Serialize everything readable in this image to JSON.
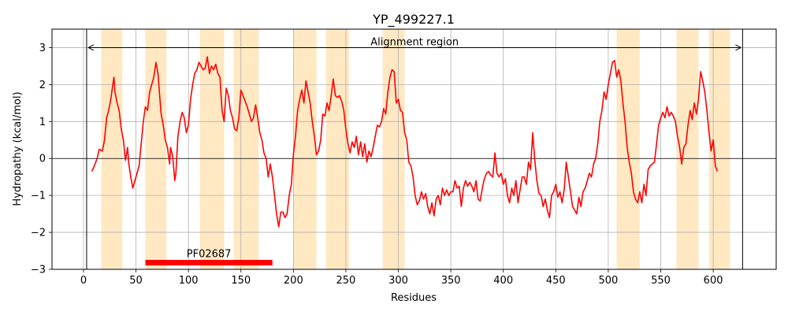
{
  "chart_data": {
    "type": "line",
    "title": "YP_499227.1",
    "xlabel": "Residues",
    "ylabel": "Hydropathy (kcal/mol)",
    "xlim": [
      -30,
      660
    ],
    "ylim": [
      -3,
      3.5
    ],
    "xticks": [
      0,
      50,
      100,
      150,
      200,
      250,
      300,
      350,
      400,
      450,
      500,
      550,
      600
    ],
    "yticks": [
      -3,
      -2,
      -1,
      0,
      1,
      2,
      3
    ],
    "grid": true,
    "colors": {
      "line": "#ff0000",
      "band": "#ffe8c2",
      "domain": "#ff0000",
      "grid": "#b0b0b0"
    },
    "alignment_region": {
      "label": "Alignment region",
      "start": 3,
      "end": 628,
      "y": 3.0
    },
    "domain": {
      "label": "PF02687",
      "start": 59,
      "end": 180,
      "y": -2.82
    },
    "hydrophobic_segments": [
      [
        17,
        37
      ],
      [
        59,
        79
      ],
      [
        111,
        134
      ],
      [
        143,
        167
      ],
      [
        200,
        222
      ],
      [
        231,
        253
      ],
      [
        285,
        306
      ],
      [
        508,
        530
      ],
      [
        565,
        586
      ],
      [
        596,
        616
      ]
    ],
    "series": [
      {
        "values": [
          [
            8,
            -0.35
          ],
          [
            10,
            -0.22
          ],
          [
            13,
            0.0
          ],
          [
            15,
            0.25
          ],
          [
            18,
            0.2
          ],
          [
            20,
            0.5
          ],
          [
            22,
            1.1
          ],
          [
            24,
            1.3
          ],
          [
            26,
            1.6
          ],
          [
            28,
            2.0
          ],
          [
            29,
            2.2
          ],
          [
            30,
            1.8
          ],
          [
            32,
            1.5
          ],
          [
            34,
            1.3
          ],
          [
            36,
            0.8
          ],
          [
            38,
            0.5
          ],
          [
            40,
            -0.05
          ],
          [
            42,
            0.3
          ],
          [
            43,
            -0.1
          ],
          [
            45,
            -0.5
          ],
          [
            47,
            -0.8
          ],
          [
            49,
            -0.6
          ],
          [
            51,
            -0.4
          ],
          [
            53,
            -0.2
          ],
          [
            55,
            0.4
          ],
          [
            57,
            1.0
          ],
          [
            59,
            1.4
          ],
          [
            61,
            1.3
          ],
          [
            63,
            1.8
          ],
          [
            65,
            2.0
          ],
          [
            67,
            2.2
          ],
          [
            69,
            2.6
          ],
          [
            71,
            2.3
          ],
          [
            72,
            1.9
          ],
          [
            74,
            1.2
          ],
          [
            76,
            0.9
          ],
          [
            78,
            0.5
          ],
          [
            80,
            0.3
          ],
          [
            82,
            -0.15
          ],
          [
            83,
            0.3
          ],
          [
            85,
            0.05
          ],
          [
            87,
            -0.6
          ],
          [
            88,
            -0.4
          ],
          [
            90,
            0.6
          ],
          [
            92,
            1.0
          ],
          [
            94,
            1.25
          ],
          [
            96,
            1.1
          ],
          [
            98,
            0.7
          ],
          [
            100,
            0.9
          ],
          [
            102,
            1.6
          ],
          [
            104,
            2.0
          ],
          [
            106,
            2.3
          ],
          [
            108,
            2.4
          ],
          [
            110,
            2.6
          ],
          [
            112,
            2.5
          ],
          [
            114,
            2.4
          ],
          [
            116,
            2.45
          ],
          [
            118,
            2.75
          ],
          [
            120,
            2.3
          ],
          [
            122,
            2.5
          ],
          [
            124,
            2.4
          ],
          [
            126,
            2.55
          ],
          [
            128,
            2.3
          ],
          [
            130,
            2.2
          ],
          [
            132,
            1.3
          ],
          [
            134,
            1.0
          ],
          [
            136,
            1.9
          ],
          [
            138,
            1.7
          ],
          [
            140,
            1.3
          ],
          [
            142,
            1.1
          ],
          [
            144,
            0.8
          ],
          [
            146,
            0.75
          ],
          [
            148,
            1.1
          ],
          [
            150,
            1.85
          ],
          [
            152,
            1.7
          ],
          [
            154,
            1.55
          ],
          [
            156,
            1.4
          ],
          [
            158,
            1.2
          ],
          [
            160,
            1.0
          ],
          [
            162,
            1.1
          ],
          [
            164,
            1.45
          ],
          [
            166,
            1.1
          ],
          [
            168,
            0.7
          ],
          [
            170,
            0.5
          ],
          [
            172,
            0.15
          ],
          [
            174,
            0.0
          ],
          [
            176,
            -0.5
          ],
          [
            178,
            -0.15
          ],
          [
            180,
            -0.5
          ],
          [
            182,
            -1.0
          ],
          [
            184,
            -1.5
          ],
          [
            186,
            -1.85
          ],
          [
            188,
            -1.45
          ],
          [
            190,
            -1.45
          ],
          [
            192,
            -1.6
          ],
          [
            194,
            -1.5
          ],
          [
            196,
            -1.0
          ],
          [
            198,
            -0.7
          ],
          [
            200,
            0.1
          ],
          [
            202,
            0.6
          ],
          [
            204,
            1.3
          ],
          [
            206,
            1.6
          ],
          [
            208,
            1.85
          ],
          [
            210,
            1.5
          ],
          [
            212,
            2.1
          ],
          [
            214,
            1.8
          ],
          [
            216,
            1.5
          ],
          [
            218,
            1.0
          ],
          [
            220,
            0.6
          ],
          [
            222,
            0.1
          ],
          [
            224,
            0.2
          ],
          [
            226,
            0.5
          ],
          [
            228,
            1.2
          ],
          [
            230,
            1.15
          ],
          [
            232,
            1.5
          ],
          [
            234,
            1.3
          ],
          [
            236,
            1.7
          ],
          [
            238,
            2.15
          ],
          [
            240,
            1.7
          ],
          [
            242,
            1.65
          ],
          [
            244,
            1.7
          ],
          [
            246,
            1.55
          ],
          [
            248,
            1.3
          ],
          [
            250,
            0.8
          ],
          [
            252,
            0.4
          ],
          [
            254,
            0.15
          ],
          [
            256,
            0.45
          ],
          [
            258,
            0.3
          ],
          [
            260,
            0.6
          ],
          [
            262,
            0.1
          ],
          [
            264,
            0.45
          ],
          [
            266,
            0.05
          ],
          [
            268,
            0.4
          ],
          [
            270,
            -0.1
          ],
          [
            272,
            0.2
          ],
          [
            274,
            0.05
          ],
          [
            276,
            0.3
          ],
          [
            278,
            0.6
          ],
          [
            280,
            0.9
          ],
          [
            282,
            0.85
          ],
          [
            284,
            1.0
          ],
          [
            286,
            1.35
          ],
          [
            288,
            1.2
          ],
          [
            290,
            1.8
          ],
          [
            292,
            2.2
          ],
          [
            294,
            2.4
          ],
          [
            296,
            2.35
          ],
          [
            298,
            1.5
          ],
          [
            300,
            1.6
          ],
          [
            302,
            1.3
          ],
          [
            304,
            1.25
          ],
          [
            306,
            0.7
          ],
          [
            308,
            0.5
          ],
          [
            310,
            -0.1
          ],
          [
            312,
            -0.2
          ],
          [
            314,
            -0.5
          ],
          [
            316,
            -1.0
          ],
          [
            318,
            -1.25
          ],
          [
            320,
            -1.15
          ],
          [
            322,
            -0.9
          ],
          [
            324,
            -1.1
          ],
          [
            326,
            -0.95
          ],
          [
            328,
            -1.3
          ],
          [
            330,
            -1.5
          ],
          [
            332,
            -1.2
          ],
          [
            334,
            -1.55
          ],
          [
            336,
            -1.1
          ],
          [
            338,
            -1.0
          ],
          [
            340,
            -1.25
          ],
          [
            342,
            -0.8
          ],
          [
            344,
            -1.0
          ],
          [
            346,
            -0.85
          ],
          [
            348,
            -1.0
          ],
          [
            350,
            -0.9
          ],
          [
            352,
            -0.9
          ],
          [
            354,
            -0.6
          ],
          [
            356,
            -0.8
          ],
          [
            358,
            -0.75
          ],
          [
            360,
            -1.3
          ],
          [
            362,
            -0.8
          ],
          [
            364,
            -0.6
          ],
          [
            366,
            -0.75
          ],
          [
            368,
            -0.65
          ],
          [
            370,
            -0.75
          ],
          [
            372,
            -0.9
          ],
          [
            374,
            -0.6
          ],
          [
            376,
            -1.1
          ],
          [
            378,
            -1.15
          ],
          [
            380,
            -0.8
          ],
          [
            382,
            -0.55
          ],
          [
            384,
            -0.4
          ],
          [
            386,
            -0.35
          ],
          [
            388,
            -0.45
          ],
          [
            390,
            -0.5
          ],
          [
            392,
            0.15
          ],
          [
            394,
            -0.4
          ],
          [
            396,
            -0.5
          ],
          [
            398,
            -0.4
          ],
          [
            400,
            -0.7
          ],
          [
            402,
            -0.55
          ],
          [
            404,
            -1.0
          ],
          [
            406,
            -1.2
          ],
          [
            408,
            -0.8
          ],
          [
            410,
            -1.0
          ],
          [
            412,
            -0.6
          ],
          [
            414,
            -1.2
          ],
          [
            416,
            -0.85
          ],
          [
            418,
            -0.5
          ],
          [
            420,
            -0.5
          ],
          [
            422,
            -0.7
          ],
          [
            424,
            -0.1
          ],
          [
            426,
            -0.3
          ],
          [
            428,
            0.7
          ],
          [
            430,
            -0.05
          ],
          [
            432,
            -0.6
          ],
          [
            434,
            -0.95
          ],
          [
            436,
            -1.0
          ],
          [
            438,
            -1.3
          ],
          [
            440,
            -1.1
          ],
          [
            442,
            -1.4
          ],
          [
            444,
            -1.6
          ],
          [
            446,
            -1.0
          ],
          [
            448,
            -0.9
          ],
          [
            450,
            -0.7
          ],
          [
            452,
            -1.05
          ],
          [
            454,
            -0.9
          ],
          [
            456,
            -1.2
          ],
          [
            458,
            -0.85
          ],
          [
            460,
            -0.1
          ],
          [
            462,
            -0.5
          ],
          [
            464,
            -0.9
          ],
          [
            466,
            -1.3
          ],
          [
            468,
            -1.4
          ],
          [
            470,
            -1.5
          ],
          [
            472,
            -1.05
          ],
          [
            474,
            -1.3
          ],
          [
            476,
            -0.9
          ],
          [
            478,
            -0.8
          ],
          [
            480,
            -0.6
          ],
          [
            482,
            -0.4
          ],
          [
            484,
            -0.5
          ],
          [
            486,
            -0.15
          ],
          [
            488,
            0.0
          ],
          [
            490,
            0.4
          ],
          [
            492,
            1.0
          ],
          [
            494,
            1.3
          ],
          [
            496,
            1.8
          ],
          [
            498,
            1.6
          ],
          [
            500,
            2.0
          ],
          [
            502,
            2.3
          ],
          [
            504,
            2.6
          ],
          [
            506,
            2.65
          ],
          [
            508,
            2.2
          ],
          [
            510,
            2.4
          ],
          [
            512,
            2.1
          ],
          [
            514,
            1.5
          ],
          [
            516,
            1.0
          ],
          [
            518,
            0.3
          ],
          [
            520,
            -0.1
          ],
          [
            522,
            -0.4
          ],
          [
            524,
            -0.9
          ],
          [
            526,
            -1.1
          ],
          [
            528,
            -1.2
          ],
          [
            530,
            -0.9
          ],
          [
            532,
            -1.2
          ],
          [
            534,
            -0.7
          ],
          [
            536,
            -1.0
          ],
          [
            538,
            -0.3
          ],
          [
            540,
            -0.2
          ],
          [
            542,
            -0.15
          ],
          [
            544,
            -0.1
          ],
          [
            546,
            0.4
          ],
          [
            548,
            0.9
          ],
          [
            550,
            1.1
          ],
          [
            552,
            1.25
          ],
          [
            554,
            1.1
          ],
          [
            556,
            1.4
          ],
          [
            558,
            1.15
          ],
          [
            560,
            1.25
          ],
          [
            562,
            1.15
          ],
          [
            564,
            1.0
          ],
          [
            566,
            0.6
          ],
          [
            568,
            0.3
          ],
          [
            570,
            -0.15
          ],
          [
            572,
            0.3
          ],
          [
            574,
            0.4
          ],
          [
            576,
            0.9
          ],
          [
            578,
            1.3
          ],
          [
            580,
            1.05
          ],
          [
            582,
            1.5
          ],
          [
            584,
            1.2
          ],
          [
            586,
            1.6
          ],
          [
            588,
            2.35
          ],
          [
            590,
            2.1
          ],
          [
            592,
            1.8
          ],
          [
            594,
            1.3
          ],
          [
            596,
            0.7
          ],
          [
            598,
            0.2
          ],
          [
            600,
            0.5
          ],
          [
            602,
            -0.2
          ],
          [
            604,
            -0.35
          ]
        ]
      }
    ]
  }
}
